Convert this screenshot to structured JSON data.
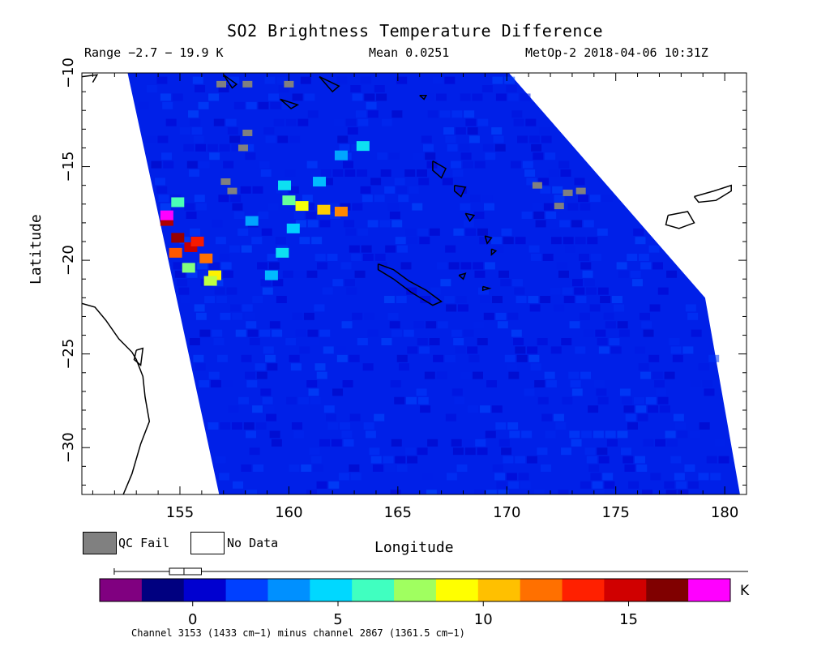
{
  "header": {
    "title": "SO2 Brightness Temperature Difference",
    "range": "Range −2.7 − 19.9 K",
    "mean": "Mean 0.0251",
    "satellite": "MetOp-2 2018-04-06 10:31Z"
  },
  "legend": {
    "qc_fail": "QC Fail",
    "no_data": "No Data"
  },
  "colorbar": {
    "unit": "K",
    "caption": "Channel 3153 (1433 cm−1) minus channel 2867 (1361.5 cm−1)",
    "ticks": [
      0,
      5,
      10,
      15
    ],
    "tick_labels": [
      "0",
      "5",
      "10",
      "15"
    ],
    "range": [
      -3.2,
      18.5
    ],
    "boxplot": {
      "whisker_low": -2.7,
      "q1": -0.8,
      "median": -0.3,
      "q3": 0.3,
      "whisker_high": 19.9
    },
    "colors": [
      "#800080",
      "#000080",
      "#0000d0",
      "#0040ff",
      "#0090ff",
      "#00d8ff",
      "#40ffc0",
      "#a0ff60",
      "#ffff00",
      "#ffc000",
      "#ff7000",
      "#ff2000",
      "#d00000",
      "#800000",
      "#ff00ff"
    ]
  },
  "chart_data": {
    "type": "heatmap",
    "title": "SO2 Brightness Temperature Difference",
    "xlabel": "Longitude",
    "ylabel": "Latitude",
    "xlim": [
      150.5,
      181
    ],
    "ylim": [
      -32.5,
      -10
    ],
    "x_ticks": [
      155,
      160,
      165,
      170,
      175,
      180
    ],
    "x_tick_labels": [
      "155",
      "160",
      "165",
      "170",
      "175",
      "180"
    ],
    "y_ticks": [
      -10,
      -15,
      -20,
      -25,
      -30
    ],
    "y_tick_labels": [
      "−10",
      "−15",
      "−20",
      "−25",
      "−30"
    ],
    "swath": {
      "west_edge": [
        [
          152.6,
          -10
        ],
        [
          156.8,
          -32.5
        ]
      ],
      "east_edge": [
        [
          170.1,
          -10
        ],
        [
          179.1,
          -22
        ],
        [
          180.7,
          -32.5
        ]
      ]
    },
    "background_value_K": 0.0,
    "plume_cells": [
      {
        "lon": 154.9,
        "lat": -18.8,
        "value": 17.0
      },
      {
        "lon": 155.5,
        "lat": -19.3,
        "value": 16.0
      },
      {
        "lon": 154.4,
        "lat": -17.9,
        "value": 16.5
      },
      {
        "lon": 154.4,
        "lat": -17.6,
        "value": 19.0
      },
      {
        "lon": 155.8,
        "lat": -19.0,
        "value": 14.5
      },
      {
        "lon": 154.8,
        "lat": -19.6,
        "value": 13.0
      },
      {
        "lon": 156.2,
        "lat": -19.9,
        "value": 12.5
      },
      {
        "lon": 156.6,
        "lat": -20.8,
        "value": 9.5
      },
      {
        "lon": 155.4,
        "lat": -20.4,
        "value": 7.0
      },
      {
        "lon": 154.9,
        "lat": -16.9,
        "value": 6.0
      },
      {
        "lon": 156.4,
        "lat": -21.1,
        "value": 8.0
      },
      {
        "lon": 160.6,
        "lat": -17.1,
        "value": 9.0
      },
      {
        "lon": 161.6,
        "lat": -17.3,
        "value": 10.5
      },
      {
        "lon": 162.4,
        "lat": -17.4,
        "value": 12.0
      },
      {
        "lon": 160.0,
        "lat": -16.8,
        "value": 6.5
      },
      {
        "lon": 159.8,
        "lat": -16.0,
        "value": 4.5
      },
      {
        "lon": 160.2,
        "lat": -18.3,
        "value": 4.0
      },
      {
        "lon": 159.7,
        "lat": -19.6,
        "value": 4.5
      },
      {
        "lon": 159.2,
        "lat": -20.8,
        "value": 3.5
      },
      {
        "lon": 161.4,
        "lat": -15.8,
        "value": 3.5
      },
      {
        "lon": 162.4,
        "lat": -14.4,
        "value": 3.0
      },
      {
        "lon": 163.4,
        "lat": -13.9,
        "value": 4.5
      },
      {
        "lon": 158.3,
        "lat": -17.9,
        "value": 3.0
      }
    ],
    "qc_fail_cells": [
      {
        "lon": 156.9,
        "lat": -10.6
      },
      {
        "lon": 158.1,
        "lat": -10.6
      },
      {
        "lon": 160.0,
        "lat": -10.6
      },
      {
        "lon": 158.1,
        "lat": -13.2
      },
      {
        "lon": 157.9,
        "lat": -14.0
      },
      {
        "lon": 157.1,
        "lat": -15.8
      },
      {
        "lon": 157.4,
        "lat": -16.3
      },
      {
        "lon": 171.4,
        "lat": -16.0
      },
      {
        "lon": 172.8,
        "lat": -16.4
      },
      {
        "lon": 172.4,
        "lat": -17.1
      },
      {
        "lon": 173.4,
        "lat": -16.3
      }
    ]
  }
}
